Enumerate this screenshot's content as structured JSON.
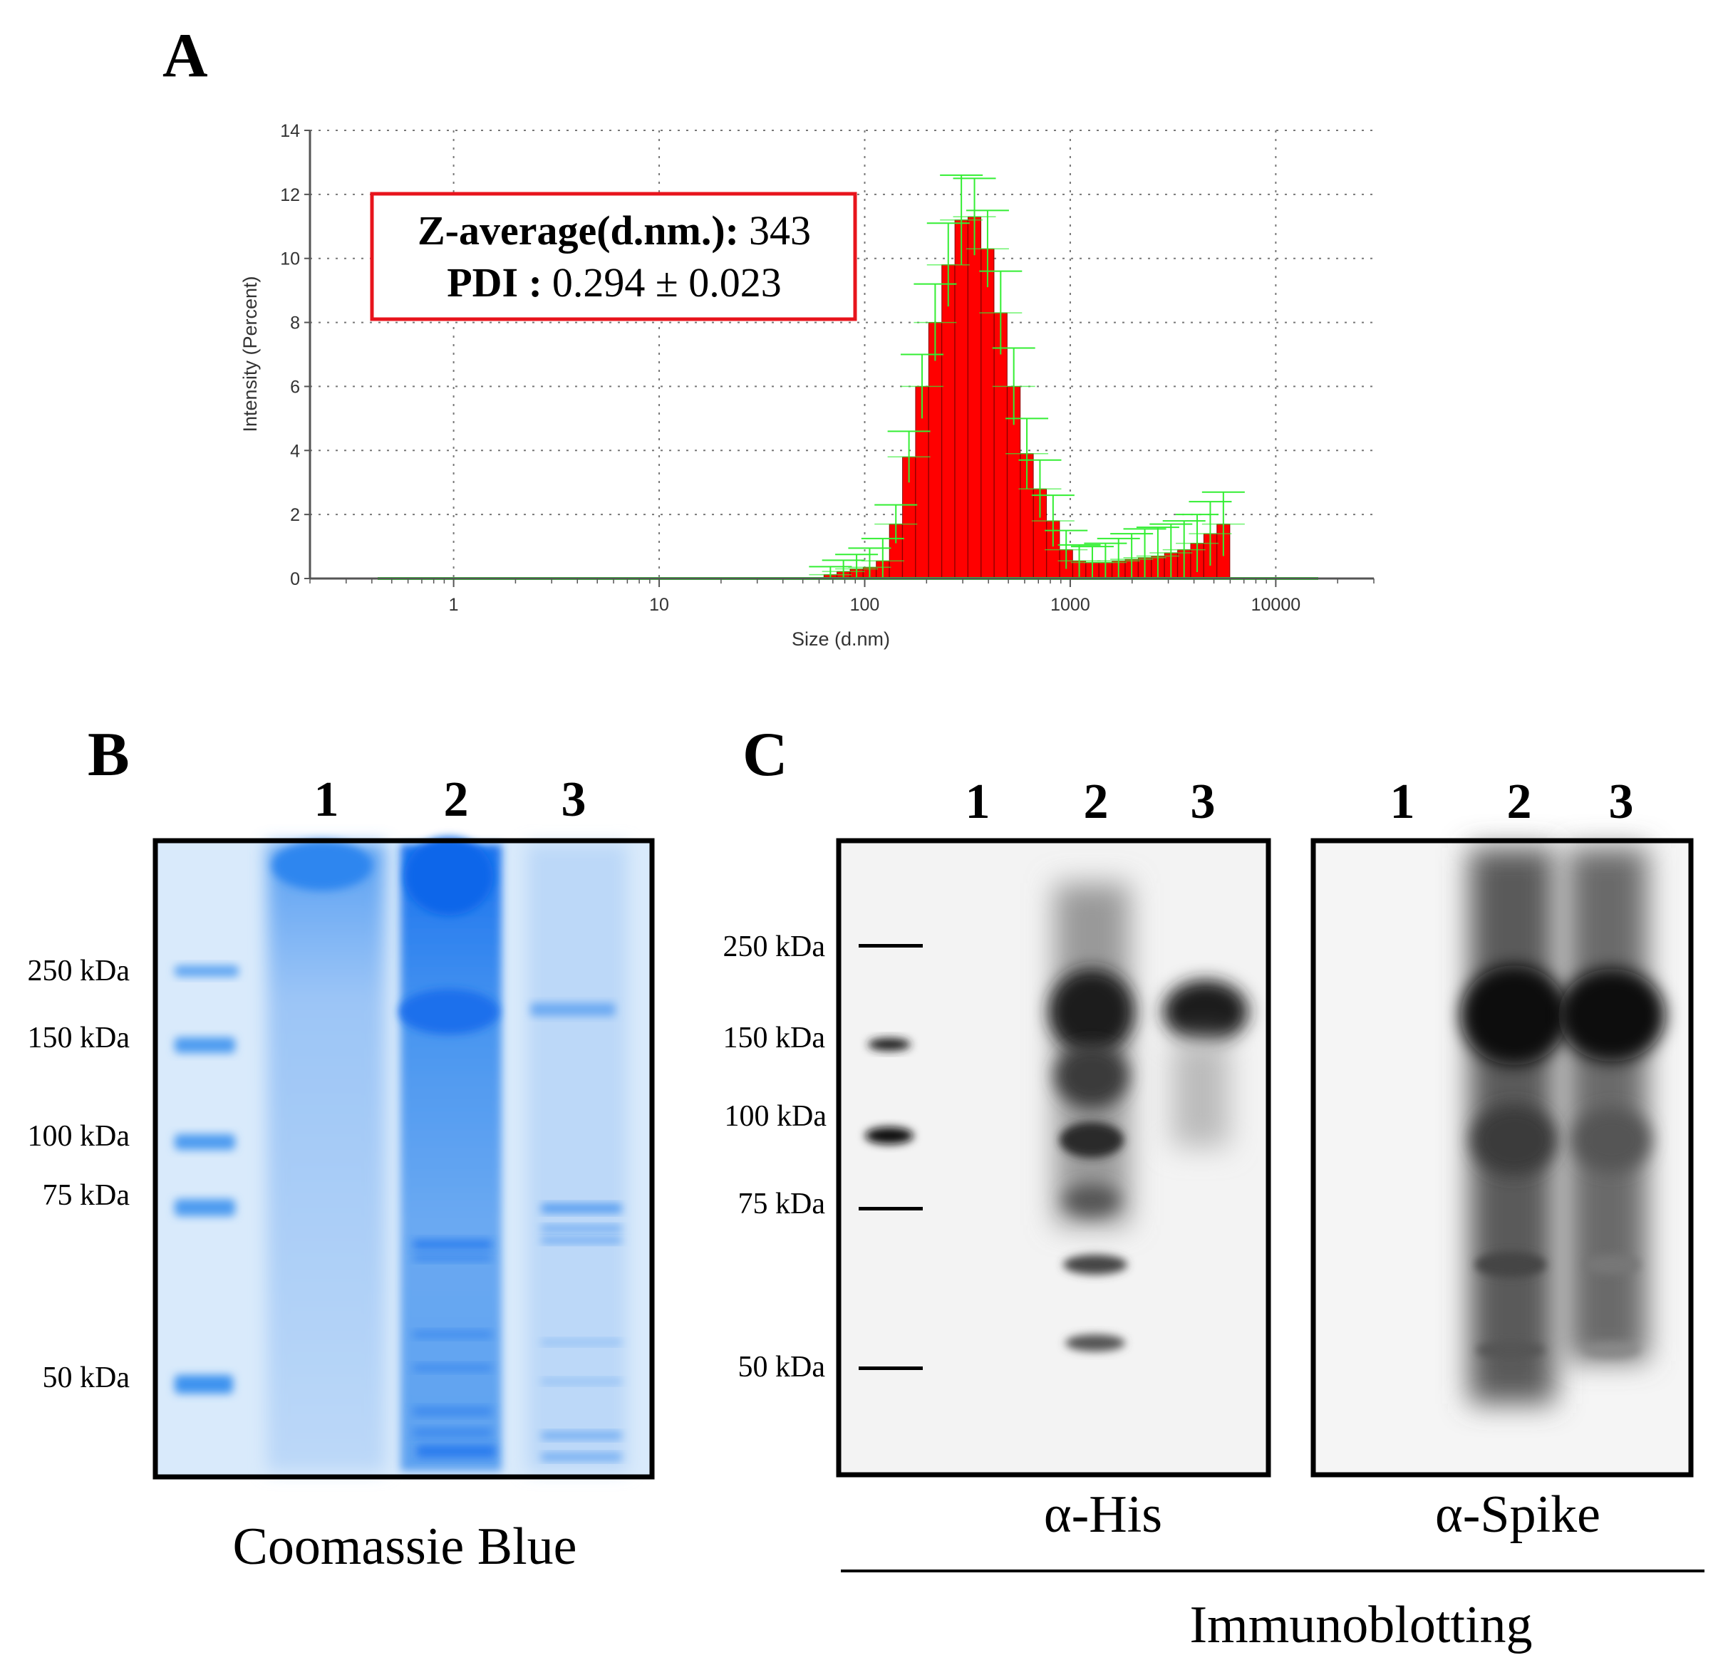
{
  "panels": {
    "a": {
      "label": "A"
    },
    "b": {
      "label": "B"
    },
    "c": {
      "label": "C"
    }
  },
  "chart_data": {
    "type": "bar",
    "title": "",
    "xlabel": "Size (d.nm)",
    "ylabel": "Intensity (Percent)",
    "x_scale": "log",
    "xlim": [
      0.2,
      30000
    ],
    "ylim": [
      0,
      14
    ],
    "x_ticks": [
      "1",
      "10",
      "100",
      "1000",
      "10000"
    ],
    "y_ticks": [
      "0",
      "2",
      "4",
      "6",
      "8",
      "10",
      "12",
      "14"
    ],
    "grid": true,
    "colors": {
      "bars": "#ff0000",
      "error_bars": "#33ee33",
      "bar_edge": "#8b0000"
    },
    "annotation": {
      "z_average_label": "Z-average(d.nm.):",
      "z_average_value": "343",
      "pdi_label": "PDI :",
      "pdi_value": "0.294 ± 0.023"
    },
    "bins": [
      {
        "size": 68.1,
        "value": 0.12,
        "err": 0.25
      },
      {
        "size": 78.8,
        "value": 0.22,
        "err": 0.35
      },
      {
        "size": 91.3,
        "value": 0.3,
        "err": 0.45
      },
      {
        "size": 105.7,
        "value": 0.35,
        "err": 0.6
      },
      {
        "size": 122.4,
        "value": 0.55,
        "err": 0.7
      },
      {
        "size": 141.8,
        "value": 1.7,
        "err": 0.6
      },
      {
        "size": 164.2,
        "value": 3.8,
        "err": 0.8
      },
      {
        "size": 190.1,
        "value": 6.0,
        "err": 1.0
      },
      {
        "size": 220.2,
        "value": 8.0,
        "err": 1.2
      },
      {
        "size": 255.0,
        "value": 9.8,
        "err": 1.3
      },
      {
        "size": 295.3,
        "value": 11.2,
        "err": 1.4
      },
      {
        "size": 342.0,
        "value": 11.3,
        "err": 1.2
      },
      {
        "size": 396.1,
        "value": 10.3,
        "err": 1.2
      },
      {
        "size": 458.7,
        "value": 8.3,
        "err": 1.3
      },
      {
        "size": 531.2,
        "value": 6.0,
        "err": 1.2
      },
      {
        "size": 615.1,
        "value": 3.9,
        "err": 1.1
      },
      {
        "size": 712.4,
        "value": 2.8,
        "err": 0.9
      },
      {
        "size": 825.0,
        "value": 1.8,
        "err": 0.8
      },
      {
        "size": 955.4,
        "value": 0.9,
        "err": 0.6
      },
      {
        "size": 1106,
        "value": 0.55,
        "err": 0.5
      },
      {
        "size": 1281,
        "value": 0.5,
        "err": 0.5
      },
      {
        "size": 1484,
        "value": 0.5,
        "err": 0.6
      },
      {
        "size": 1718,
        "value": 0.55,
        "err": 0.7
      },
      {
        "size": 1990,
        "value": 0.6,
        "err": 0.8
      },
      {
        "size": 2305,
        "value": 0.65,
        "err": 0.9
      },
      {
        "size": 2669,
        "value": 0.7,
        "err": 0.9
      },
      {
        "size": 3091,
        "value": 0.8,
        "err": 0.9
      },
      {
        "size": 3580,
        "value": 0.9,
        "err": 0.9
      },
      {
        "size": 4145,
        "value": 1.1,
        "err": 0.9
      },
      {
        "size": 4801,
        "value": 1.4,
        "err": 1.0
      },
      {
        "size": 5560,
        "value": 1.7,
        "err": 1.0
      }
    ]
  },
  "gel_b": {
    "lane_numbers": [
      "1",
      "2",
      "3"
    ],
    "markers": [
      "250 kDa",
      "150 kDa",
      "100 kDa",
      "75  kDa",
      "50  kDa"
    ],
    "caption": "Coomassie Blue"
  },
  "blots_c": {
    "lane_numbers_left": [
      "1",
      "2",
      "3"
    ],
    "lane_numbers_right": [
      "1",
      "2",
      "3"
    ],
    "markers": [
      "250 kDa",
      "150 kDa",
      "100 kDa",
      "75  kDa",
      "50  kDa"
    ],
    "caption_left": "α-His",
    "caption_right": "α-Spike",
    "group_label": "Immunoblotting"
  }
}
